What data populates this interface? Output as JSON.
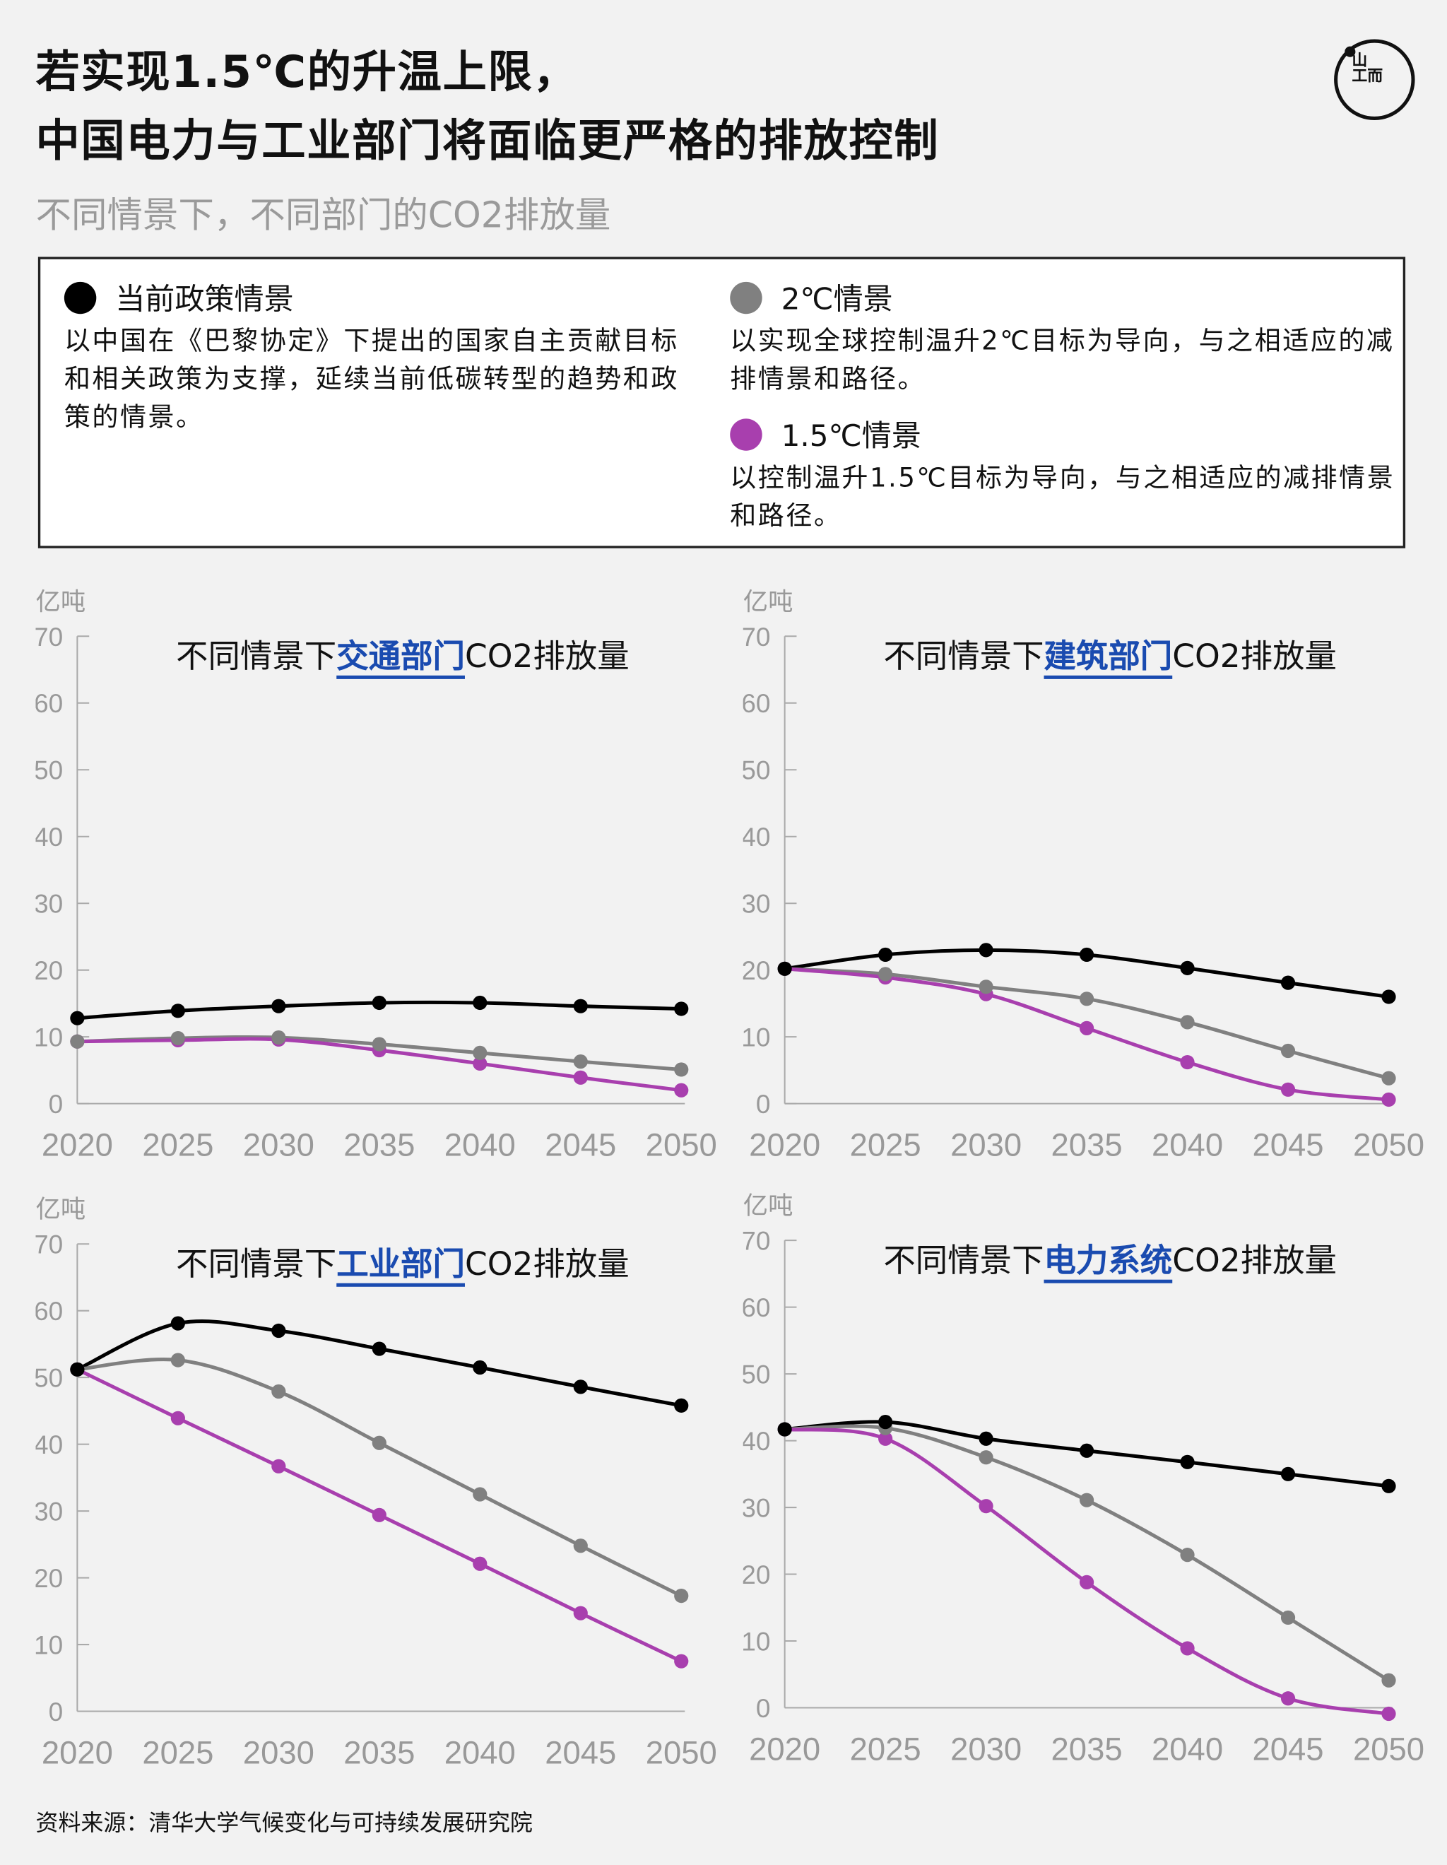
{
  "header": {
    "title_line1": "若实现1.5℃的升温上限，",
    "title_line2": "中国电力与工业部门将面临更严格的排放控制",
    "subtitle": "不同情景下，不同部门的CO2排放量",
    "logo_text": "端\n而"
  },
  "legend": {
    "items": [
      {
        "label": "当前政策情景",
        "color": "#000000",
        "desc": "以中国在《巴黎协定》下提出的国家自主贡献目标和相关政策为支撑，延续当前低碳转型的趋势和政策的情景。"
      },
      {
        "label": "2℃情景",
        "color": "#808080",
        "desc": "以实现全球控制温升2℃目标为导向，与之相适应的减排情景和路径。"
      },
      {
        "label": "1.5℃情景",
        "color": "#a83fae",
        "desc": "以控制温升1.5℃目标为导向，与之相适应的减排情景和路径。"
      }
    ]
  },
  "chart_data": [
    {
      "type": "line",
      "title_prefix": "不同情景下",
      "title_highlight": "交通部门",
      "title_suffix": "CO2排放量",
      "ylabel": "亿吨",
      "ylim": [
        0,
        70
      ],
      "yticks": [
        "0",
        "10",
        "20",
        "30",
        "40",
        "50",
        "60",
        "70"
      ],
      "x": [
        "2020",
        "2025",
        "2030",
        "2035",
        "2040",
        "2045",
        "2050"
      ],
      "series": [
        {
          "name": "当前政策情景",
          "values": [
            12.8,
            13.9,
            14.6,
            15.1,
            15.1,
            14.6,
            14.2
          ]
        },
        {
          "name": "2℃情景",
          "values": [
            9.3,
            9.8,
            9.9,
            8.9,
            7.6,
            6.3,
            5.1
          ]
        },
        {
          "name": "1.5℃情景",
          "values": [
            9.3,
            9.5,
            9.6,
            8.0,
            6.0,
            3.9,
            2.0
          ]
        }
      ]
    },
    {
      "type": "line",
      "title_prefix": "不同情景下",
      "title_highlight": "建筑部门",
      "title_suffix": "CO2排放量",
      "ylabel": "亿吨",
      "ylim": [
        0,
        70
      ],
      "yticks": [
        "0",
        "10",
        "20",
        "30",
        "40",
        "50",
        "60",
        "70"
      ],
      "x": [
        "2020",
        "2025",
        "2030",
        "2035",
        "2040",
        "2045",
        "2050"
      ],
      "series": [
        {
          "name": "当前政策情景",
          "values": [
            20.2,
            22.3,
            23.0,
            22.3,
            20.3,
            18.1,
            16.0
          ]
        },
        {
          "name": "2℃情景",
          "values": [
            20.2,
            19.4,
            17.5,
            15.7,
            12.2,
            7.9,
            3.8
          ]
        },
        {
          "name": "1.5℃情景",
          "values": [
            20.2,
            18.9,
            16.4,
            11.3,
            6.2,
            2.1,
            0.6
          ]
        }
      ]
    },
    {
      "type": "line",
      "title_prefix": "不同情景下",
      "title_highlight": "工业部门",
      "title_suffix": "CO2排放量",
      "ylabel": "亿吨",
      "ylim": [
        0,
        70
      ],
      "yticks": [
        "0",
        "10",
        "20",
        "30",
        "40",
        "50",
        "60",
        "70"
      ],
      "x": [
        "2020",
        "2025",
        "2030",
        "2035",
        "2040",
        "2045",
        "2050"
      ],
      "series": [
        {
          "name": "当前政策情景",
          "values": [
            51.2,
            58.1,
            57.0,
            54.3,
            51.5,
            48.6,
            45.8
          ]
        },
        {
          "name": "2℃情景",
          "values": [
            51.2,
            52.6,
            47.9,
            40.2,
            32.5,
            24.8,
            17.3
          ]
        },
        {
          "name": "1.5℃情景",
          "values": [
            51.2,
            43.9,
            36.7,
            29.4,
            22.1,
            14.7,
            7.5
          ]
        }
      ]
    },
    {
      "type": "line",
      "title_prefix": "不同情景下",
      "title_highlight": "电力系统",
      "title_suffix": "CO2排放量",
      "ylabel": "亿吨",
      "ylim": [
        0,
        70
      ],
      "yticks": [
        "0",
        "10",
        "20",
        "30",
        "40",
        "50",
        "60",
        "70"
      ],
      "x": [
        "2020",
        "2025",
        "2030",
        "2035",
        "2040",
        "2045",
        "2050"
      ],
      "series": [
        {
          "name": "当前政策情景",
          "values": [
            41.7,
            42.8,
            40.3,
            38.5,
            36.8,
            35.0,
            33.2
          ]
        },
        {
          "name": "2℃情景",
          "values": [
            41.7,
            41.9,
            37.5,
            31.1,
            22.9,
            13.5,
            4.1
          ]
        },
        {
          "name": "1.5℃情景",
          "values": [
            41.7,
            40.3,
            30.2,
            18.8,
            8.9,
            1.4,
            -0.9
          ]
        }
      ]
    }
  ],
  "footer": {
    "source": "资料来源：清华大学气候变化与可持续发展研究院"
  }
}
